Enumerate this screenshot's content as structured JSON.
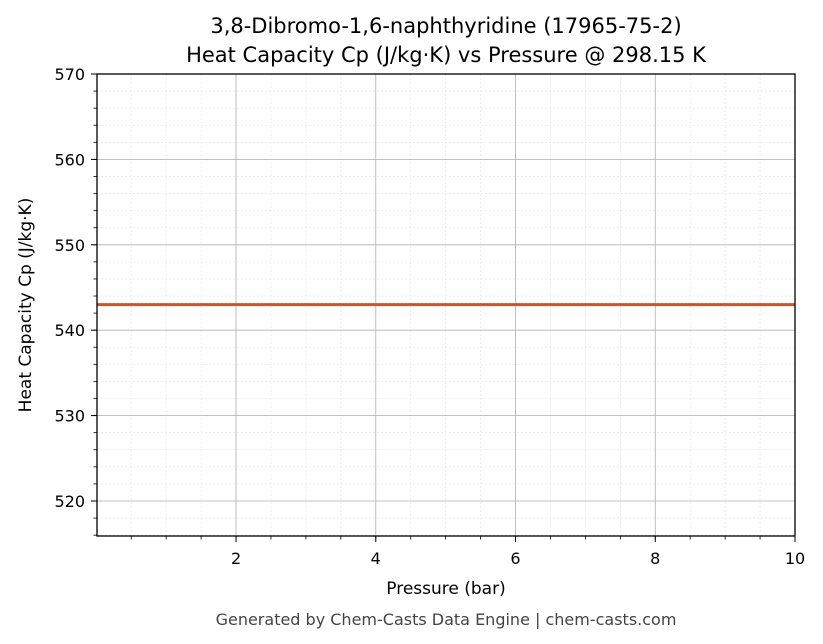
{
  "chart_data": {
    "type": "line",
    "title": "3,8-Dibromo-1,6-naphthyridine (17965-75-2)",
    "subtitle": "Heat Capacity Cp (J/kg·K) vs Pressure @ 298.15 K",
    "xlabel": "Pressure (bar)",
    "ylabel": "Heat Capacity Cp (J/kg·K)",
    "xlim": [
      0.01,
      10
    ],
    "ylim": [
      515.9,
      570
    ],
    "xticks": [
      2,
      4,
      6,
      8,
      10
    ],
    "yticks": [
      520,
      530,
      540,
      550,
      560,
      570
    ],
    "grid": true,
    "series": [
      {
        "color": "#c8562c",
        "x": [
          0.01,
          1,
          2,
          3,
          4,
          5,
          6,
          7,
          8,
          9,
          10
        ],
        "y": [
          543,
          543,
          543,
          543,
          543,
          543,
          543,
          543,
          543,
          543,
          543
        ]
      }
    ]
  },
  "footer": "Generated by Chem-Casts Data Engine | chem-casts.com"
}
